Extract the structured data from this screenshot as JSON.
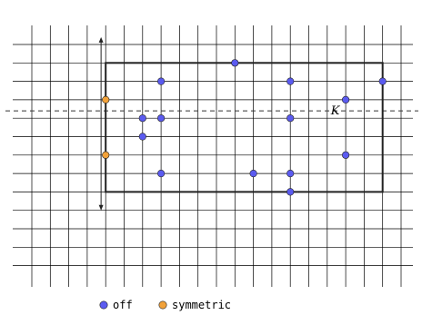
{
  "diagram": {
    "colors": {
      "grid": "#000000",
      "off": "#5b5bf0",
      "symmetric": "#f2a23a",
      "stroke": "#222222"
    },
    "grid": {
      "columns": 21,
      "rows": 13
    },
    "rectangle": {
      "col_from": 4,
      "col_to": 19,
      "row_from": 1,
      "row_to": 8
    },
    "axis_line": {
      "row": 3.6,
      "label": "K"
    },
    "arrow": {
      "col": 3.75,
      "row_from": -0.4,
      "row_to": 9.0
    },
    "points": [
      {
        "col": 11,
        "row": 1,
        "kind": "off"
      },
      {
        "col": 7,
        "row": 2,
        "kind": "off"
      },
      {
        "col": 14,
        "row": 2,
        "kind": "off"
      },
      {
        "col": 19,
        "row": 2,
        "kind": "off"
      },
      {
        "col": 17,
        "row": 3,
        "kind": "off"
      },
      {
        "col": 6,
        "row": 4,
        "kind": "off"
      },
      {
        "col": 7,
        "row": 4,
        "kind": "off"
      },
      {
        "col": 14,
        "row": 4,
        "kind": "off"
      },
      {
        "col": 6,
        "row": 5,
        "kind": "off"
      },
      {
        "col": 17,
        "row": 6,
        "kind": "off"
      },
      {
        "col": 7,
        "row": 7,
        "kind": "off"
      },
      {
        "col": 12,
        "row": 7,
        "kind": "off"
      },
      {
        "col": 14,
        "row": 7,
        "kind": "off"
      },
      {
        "col": 14,
        "row": 8,
        "kind": "off"
      },
      {
        "col": 4,
        "row": 3,
        "kind": "symmetric"
      },
      {
        "col": 4,
        "row": 6,
        "kind": "symmetric"
      }
    ],
    "legend": [
      {
        "kind": "off",
        "label": "off"
      },
      {
        "kind": "symmetric",
        "label": "symmetric"
      }
    ]
  }
}
